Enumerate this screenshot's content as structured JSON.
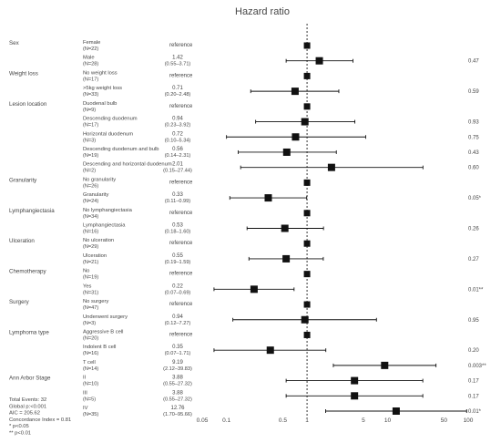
{
  "chart_data": {
    "type": "forest",
    "title": "Hazard ratio",
    "x_scale": "log",
    "xlim": [
      0.05,
      100
    ],
    "x_ticks": [
      0.05,
      0.1,
      0.5,
      1,
      5,
      10,
      50,
      100
    ],
    "x_tick_labels": [
      "0.05",
      "0.1",
      "0.5",
      "1",
      "5",
      "10",
      "50",
      "100"
    ],
    "reference_line": 1,
    "rows": [
      {
        "variable": "Sex",
        "level": "Female",
        "n": "(N=22)",
        "estimate": "reference",
        "hr": null,
        "lo": null,
        "hi": null,
        "p": ""
      },
      {
        "variable": "",
        "level": "Male",
        "n": "(N=28)",
        "estimate": "1.42",
        "ci": "(0.55–3.71)",
        "hr": 1.42,
        "lo": 0.55,
        "hi": 3.71,
        "p": "0.47"
      },
      {
        "variable": "Weight loss",
        "level": "No weight loss",
        "n": "(N=17)",
        "estimate": "reference",
        "hr": null,
        "lo": null,
        "hi": null,
        "p": ""
      },
      {
        "variable": "",
        "level": ">5kg weight loss",
        "n": "(N=33)",
        "estimate": "0.71",
        "ci": "(0.20–2.48)",
        "hr": 0.71,
        "lo": 0.2,
        "hi": 2.48,
        "p": "0.59"
      },
      {
        "variable": "Lesion location",
        "level": "Duodenal bulb",
        "n": "(N=9)",
        "estimate": "reference",
        "hr": null,
        "lo": null,
        "hi": null,
        "p": ""
      },
      {
        "variable": "",
        "level": "Descending duodenum",
        "n": "(N=17)",
        "estimate": "0.94",
        "ci": "(0.23–3.92)",
        "hr": 0.94,
        "lo": 0.23,
        "hi": 3.92,
        "p": "0.93"
      },
      {
        "variable": "",
        "level": "Horizontal duodenum",
        "n": "(N=3)",
        "estimate": "0.72",
        "ci": "(0.10–5.34)",
        "hr": 0.72,
        "lo": 0.1,
        "hi": 5.34,
        "p": "0.75"
      },
      {
        "variable": "",
        "level": "Descending duodenum and bulb",
        "n": "(N=19)",
        "estimate": "0.56",
        "ci": "(0.14–2.31)",
        "hr": 0.56,
        "lo": 0.14,
        "hi": 2.31,
        "p": "0.43"
      },
      {
        "variable": "",
        "level": "Descending and horizontal duodenum",
        "n": "(N=2)",
        "estimate": "2.01",
        "ci": "(0.15–27.44)",
        "hr": 2.01,
        "lo": 0.15,
        "hi": 27.44,
        "p": "0.60"
      },
      {
        "variable": "Granularity",
        "level": "No granularity",
        "n": "(N=26)",
        "estimate": "reference",
        "hr": null,
        "lo": null,
        "hi": null,
        "p": ""
      },
      {
        "variable": "",
        "level": "Granularity",
        "n": "(N=24)",
        "estimate": "0.33",
        "ci": "(0.11–0.99)",
        "hr": 0.33,
        "lo": 0.11,
        "hi": 0.99,
        "p": "0.05*"
      },
      {
        "variable": "Lymphangiectasia",
        "level": "No lymphangiectasia",
        "n": "(N=34)",
        "estimate": "reference",
        "hr": null,
        "lo": null,
        "hi": null,
        "p": ""
      },
      {
        "variable": "",
        "level": "Lymphangiectasia",
        "n": "(N=16)",
        "estimate": "0.53",
        "ci": "(0.18–1.60)",
        "hr": 0.53,
        "lo": 0.18,
        "hi": 1.6,
        "p": "0.26"
      },
      {
        "variable": "Ulceration",
        "level": "No ulceration",
        "n": "(N=29)",
        "estimate": "reference",
        "hr": null,
        "lo": null,
        "hi": null,
        "p": ""
      },
      {
        "variable": "",
        "level": "Ulceration",
        "n": "(N=21)",
        "estimate": "0.55",
        "ci": "(0.19–1.59)",
        "hr": 0.55,
        "lo": 0.19,
        "hi": 1.59,
        "p": "0.27"
      },
      {
        "variable": "Chemotherapy",
        "level": "No",
        "n": "(N=19)",
        "estimate": "reference",
        "hr": null,
        "lo": null,
        "hi": null,
        "p": ""
      },
      {
        "variable": "",
        "level": "Yes",
        "n": "(N=31)",
        "estimate": "0.22",
        "ci": "(0.07–0.69)",
        "hr": 0.22,
        "lo": 0.07,
        "hi": 0.69,
        "p": "0.01**"
      },
      {
        "variable": "Surgery",
        "level": "No surgery",
        "n": "(N=47)",
        "estimate": "reference",
        "hr": null,
        "lo": null,
        "hi": null,
        "p": ""
      },
      {
        "variable": "",
        "level": "Underwent surgery",
        "n": "(N=3)",
        "estimate": "0.94",
        "ci": "(0.12–7.27)",
        "hr": 0.94,
        "lo": 0.12,
        "hi": 7.27,
        "p": "0.95"
      },
      {
        "variable": "Lymphoma type",
        "level": "Aggressive B cell",
        "n": "(N=20)",
        "estimate": "reference",
        "hr": null,
        "lo": null,
        "hi": null,
        "p": ""
      },
      {
        "variable": "",
        "level": "Indolent B cell",
        "n": "(N=16)",
        "estimate": "0.35",
        "ci": "(0.07–1.71)",
        "hr": 0.35,
        "lo": 0.07,
        "hi": 1.71,
        "p": "0.20"
      },
      {
        "variable": "",
        "level": "T cell",
        "n": "(N=14)",
        "estimate": "9.19",
        "ci": "(2.12–39.83)",
        "hr": 9.19,
        "lo": 2.12,
        "hi": 39.83,
        "p": "0.003**"
      },
      {
        "variable": "Ann Arbor Stage",
        "level": "II",
        "n": "(N=10)",
        "estimate": "3.88",
        "ci": "(0.55–27.32)",
        "hr": 3.88,
        "lo": 0.55,
        "hi": 27.32,
        "p": "0.17"
      },
      {
        "variable": "",
        "level": "III",
        "n": "(N=5)",
        "estimate": "3.88",
        "ci": "(0.55–27.32)",
        "hr": 3.88,
        "lo": 0.55,
        "hi": 27.32,
        "p": "0.17"
      },
      {
        "variable": "",
        "level": "IV",
        "n": "(N=35)",
        "estimate": "12.76",
        "ci": "(1.70–95.66)",
        "hr": 12.76,
        "lo": 1.7,
        "hi": 95.66,
        "p": "0.01*"
      }
    ],
    "footer": [
      "Total Events: 32",
      "Global p:<0.001",
      "AIC = 205.62",
      "Concordance Index = 0.81",
      "*   p<0.05",
      "**  p<0.01"
    ]
  }
}
